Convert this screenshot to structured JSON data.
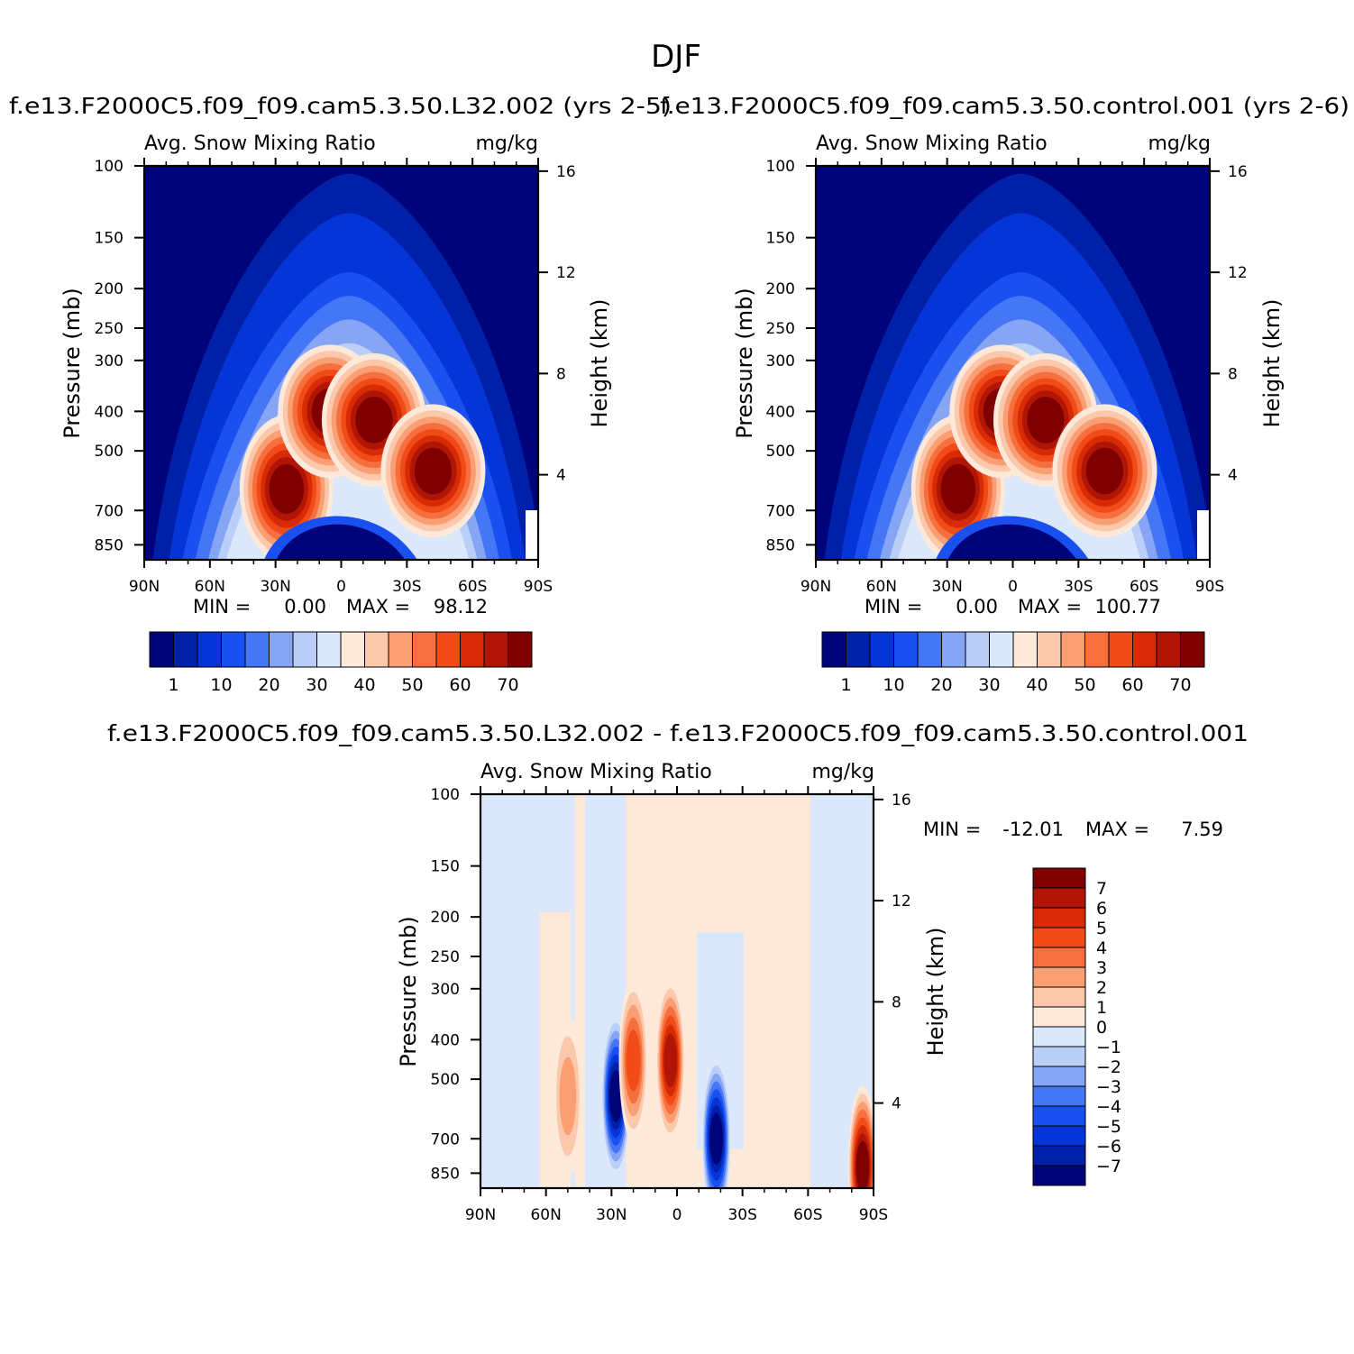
{
  "figure": {
    "title": "DJF"
  },
  "colors": {
    "abs_palette": [
      "#00047a",
      "#0120a8",
      "#0535d6",
      "#1a50f0",
      "#4476f5",
      "#86a6f5",
      "#b9cff7",
      "#dbe8fb",
      "#fde9da",
      "#fcc8ab",
      "#fa9f74",
      "#f6703f",
      "#f14b18",
      "#d62b05",
      "#b11505",
      "#7e0000"
    ],
    "diff_palette": [
      "#00047a",
      "#0120a8",
      "#0535d6",
      "#1a50f0",
      "#4476f5",
      "#86a6f5",
      "#b9cff7",
      "#dbe8fb",
      "#fde9da",
      "#fcc8ab",
      "#fa9f74",
      "#f6703f",
      "#f14b18",
      "#d62b05",
      "#b11505",
      "#7e0000"
    ]
  },
  "chart_data": [
    {
      "type": "heatmap",
      "case_title": "f.e13.F2000C5.f09_f09.cam5.3.50.L32.002 (yrs 2-5)",
      "variable": "Avg. Snow Mixing Ratio",
      "units": "mg/kg",
      "ylabel": "Pressure (mb)",
      "y2label": "Height (km)",
      "x_ticks": [
        "90N",
        "60N",
        "30N",
        "0",
        "30S",
        "60S",
        "90S"
      ],
      "y_ticks": [
        "100",
        "150",
        "200",
        "250",
        "300",
        "400",
        "500",
        "700",
        "850"
      ],
      "y2_ticks": [
        "16",
        "12",
        "8",
        "4"
      ],
      "min_label": "MIN =",
      "min_value": "0.00",
      "max_label": "MAX =",
      "max_value": "98.12",
      "min": 0.0,
      "max": 98.12,
      "colorbar_levels": [
        "1",
        "10",
        "20",
        "30",
        "40",
        "50",
        "60",
        "70"
      ],
      "cores": [
        {
          "lat": 25,
          "p": 620,
          "value": 80
        },
        {
          "lat": 5,
          "p": 400,
          "value": 75
        },
        {
          "lat": -15,
          "p": 420,
          "value": 78
        },
        {
          "lat": -42,
          "p": 560,
          "value": 98
        }
      ]
    },
    {
      "type": "heatmap",
      "case_title": "f.e13.F2000C5.f09_f09.cam5.3.50.control.001 (yrs 2-6)",
      "variable": "Avg. Snow Mixing Ratio",
      "units": "mg/kg",
      "ylabel": "Pressure (mb)",
      "y2label": "Height (km)",
      "x_ticks": [
        "90N",
        "60N",
        "30N",
        "0",
        "30S",
        "60S",
        "90S"
      ],
      "y_ticks": [
        "100",
        "150",
        "200",
        "250",
        "300",
        "400",
        "500",
        "700",
        "850"
      ],
      "y2_ticks": [
        "16",
        "12",
        "8",
        "4"
      ],
      "min_label": "MIN =",
      "min_value": "0.00",
      "max_label": "MAX =",
      "max_value": "100.77",
      "min": 0.0,
      "max": 100.77,
      "colorbar_levels": [
        "1",
        "10",
        "20",
        "30",
        "40",
        "50",
        "60",
        "70"
      ],
      "cores": [
        {
          "lat": 25,
          "p": 620,
          "value": 80
        },
        {
          "lat": 5,
          "p": 400,
          "value": 76
        },
        {
          "lat": -15,
          "p": 420,
          "value": 80
        },
        {
          "lat": -42,
          "p": 560,
          "value": 100
        }
      ]
    },
    {
      "type": "heatmap",
      "case_title": "f.e13.F2000C5.f09_f09.cam5.3.50.L32.002 - f.e13.F2000C5.f09_f09.cam5.3.50.control.001",
      "variable": "Avg. Snow Mixing Ratio",
      "units": "mg/kg",
      "ylabel": "Pressure (mb)",
      "y2label": "Height (km)",
      "x_ticks": [
        "90N",
        "60N",
        "30N",
        "0",
        "30S",
        "60S",
        "90S"
      ],
      "y_ticks": [
        "100",
        "150",
        "200",
        "250",
        "300",
        "400",
        "500",
        "700",
        "850"
      ],
      "y2_ticks": [
        "16",
        "12",
        "8",
        "4"
      ],
      "min_label": "MIN =",
      "min_value": "-12.01",
      "max_label": "MAX =",
      "max_value": "7.59",
      "min": -12.01,
      "max": 7.59,
      "colorbar_levels": [
        "7",
        "6",
        "5",
        "4",
        "3",
        "2",
        "1",
        "0",
        "-1",
        "-2",
        "-3",
        "-4",
        "-5",
        "-6",
        "-7"
      ],
      "features": [
        {
          "lat": 28,
          "p": 550,
          "value": -12
        },
        {
          "lat": -18,
          "p": 700,
          "value": -8
        },
        {
          "lat": 20,
          "p": 450,
          "value": 4
        },
        {
          "lat": 3,
          "p": 450,
          "value": 6
        },
        {
          "lat": 50,
          "p": 550,
          "value": 2
        },
        {
          "lat": -85,
          "p": 820,
          "value": 7.5
        }
      ]
    }
  ]
}
